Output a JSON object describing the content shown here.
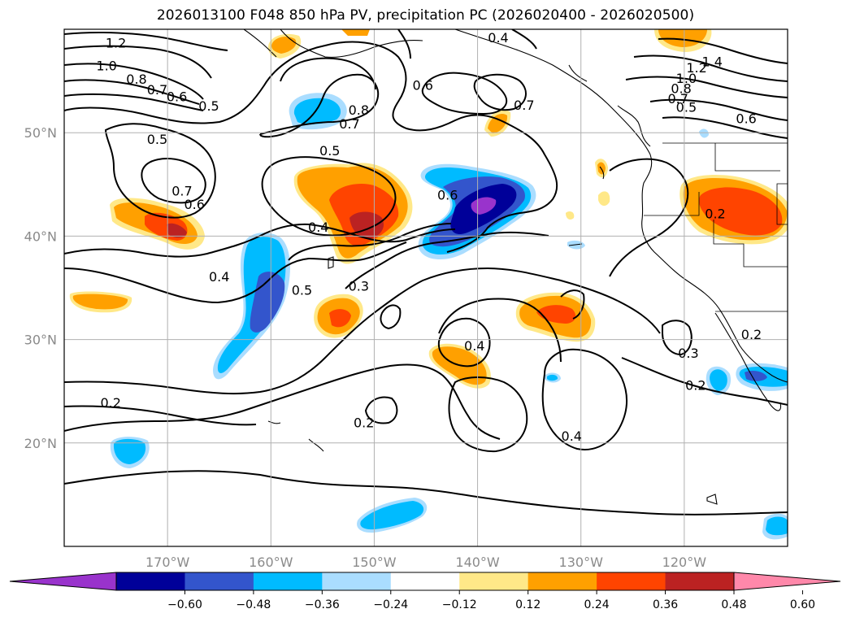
{
  "title": "2026013100 F048 850 hPa PV, precipitation PC (2026020400 - 2026020500)",
  "map": {
    "lon_range": [
      -180,
      -110
    ],
    "lat_range": [
      10,
      60
    ],
    "lon_ticks": [
      {
        "lon": -170,
        "label": "170°W"
      },
      {
        "lon": -160,
        "label": "160°W"
      },
      {
        "lon": -150,
        "label": "150°W"
      },
      {
        "lon": -140,
        "label": "140°W"
      },
      {
        "lon": -130,
        "label": "130°W"
      },
      {
        "lon": -120,
        "label": "120°W"
      }
    ],
    "lat_ticks": [
      {
        "lat": 20,
        "label": "20°N"
      },
      {
        "lat": 30,
        "label": "30°N"
      },
      {
        "lat": 40,
        "label": "40°N"
      },
      {
        "lat": 50,
        "label": "50°N"
      }
    ]
  },
  "colorbar": {
    "colors": [
      "#9933cc",
      "#000099",
      "#3355cc",
      "#00bbff",
      "#aaddff",
      "#ffffff",
      "#ffe888",
      "#ffa000",
      "#ff4400",
      "#bb2222",
      "#ff88aa"
    ],
    "tick_labels": [
      "−0.60",
      "−0.48",
      "−0.36",
      "−0.24",
      "−0.12",
      "0.12",
      "0.24",
      "0.36",
      "0.48",
      "0.60"
    ]
  },
  "contour_labels": [
    {
      "text": "1.2",
      "lon": -175,
      "lat": 58.7
    },
    {
      "text": "1.0",
      "lon": -175.9,
      "lat": 56.5
    },
    {
      "text": "0.8",
      "lon": -173,
      "lat": 55.2
    },
    {
      "text": "0.7",
      "lon": -171,
      "lat": 54.2
    },
    {
      "text": "0.6",
      "lon": -169.1,
      "lat": 53.5
    },
    {
      "text": "0.5",
      "lon": -166,
      "lat": 52.6
    },
    {
      "text": "0.5",
      "lon": -171,
      "lat": 49.4
    },
    {
      "text": "0.7",
      "lon": -168.6,
      "lat": 44.4
    },
    {
      "text": "0.6",
      "lon": -167.4,
      "lat": 43.1
    },
    {
      "text": "0.8",
      "lon": -151.5,
      "lat": 52.2
    },
    {
      "text": "0.7",
      "lon": -152.4,
      "lat": 50.9
    },
    {
      "text": "0.6",
      "lon": -145.3,
      "lat": 54.6
    },
    {
      "text": "0.7",
      "lon": -135.5,
      "lat": 52.7
    },
    {
      "text": "0.5",
      "lon": -154.3,
      "lat": 48.3
    },
    {
      "text": "0.6",
      "lon": -142.9,
      "lat": 44
    },
    {
      "text": "0.4",
      "lon": -155.4,
      "lat": 40.9
    },
    {
      "text": "0.4",
      "lon": -165,
      "lat": 36.1
    },
    {
      "text": "0.5",
      "lon": -157,
      "lat": 34.8
    },
    {
      "text": "0.3",
      "lon": -151.5,
      "lat": 35.2
    },
    {
      "text": "0.4",
      "lon": -140.3,
      "lat": 29.4
    },
    {
      "text": "0.3",
      "lon": -119.6,
      "lat": 28.7
    },
    {
      "text": "0.2",
      "lon": -118.9,
      "lat": 25.6
    },
    {
      "text": "0.2",
      "lon": -175.5,
      "lat": 23.9
    },
    {
      "text": "0.2",
      "lon": -151,
      "lat": 22
    },
    {
      "text": "0.4",
      "lon": -130.9,
      "lat": 20.7
    },
    {
      "text": "0.2",
      "lon": -117,
      "lat": 42.2
    },
    {
      "text": "1.4",
      "lon": -117.3,
      "lat": 56.9
    },
    {
      "text": "1.2",
      "lon": -118.8,
      "lat": 56.3
    },
    {
      "text": "1.0",
      "lon": -119.8,
      "lat": 55.3
    },
    {
      "text": "0.8",
      "lon": -120.3,
      "lat": 54.3
    },
    {
      "text": "0.7",
      "lon": -120.6,
      "lat": 53.3
    },
    {
      "text": "0.5",
      "lon": -119.8,
      "lat": 52.5
    },
    {
      "text": "0.6",
      "lon": -114,
      "lat": 51.4
    },
    {
      "text": "0.2",
      "lon": -113.5,
      "lat": 30.5
    },
    {
      "text": "0.4",
      "lon": -138,
      "lat": 59.2
    }
  ]
}
